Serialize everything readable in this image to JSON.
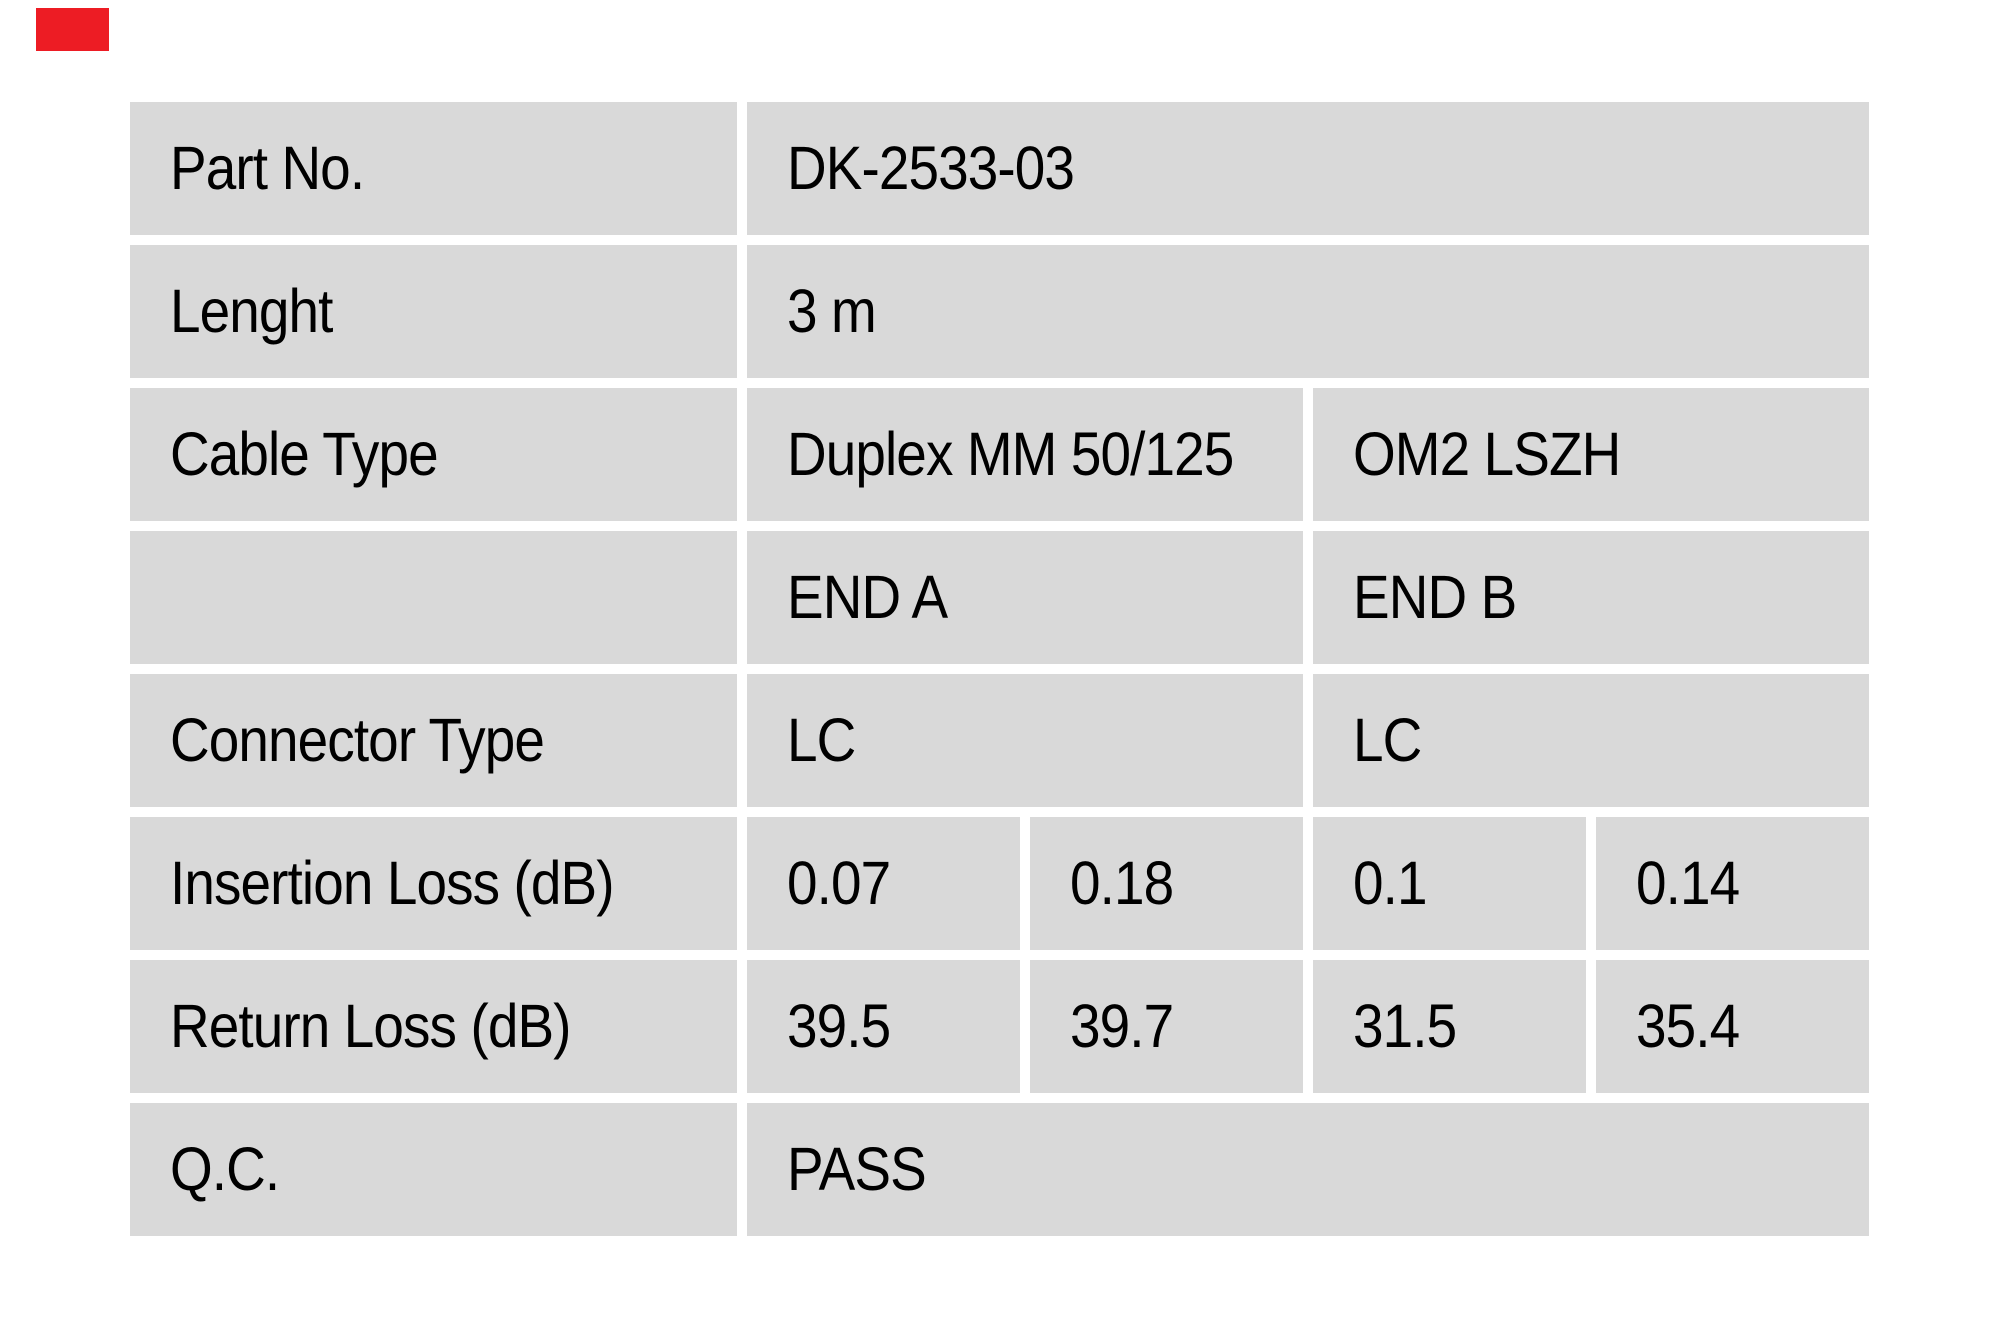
{
  "page": {
    "background": "#ffffff",
    "cell_background": "#d9d9d9",
    "text_color": "#000000"
  },
  "red_marker": {
    "color": "#ed1c24"
  },
  "table": {
    "rows": [
      {
        "label": "Part No.",
        "values": [
          {
            "text": "DK-2533-03",
            "span": 4
          }
        ]
      },
      {
        "label": "Lenght",
        "values": [
          {
            "text": "3 m",
            "span": 4
          }
        ]
      },
      {
        "label": "Cable Type",
        "values": [
          {
            "text": "Duplex MM 50/125",
            "span": 2
          },
          {
            "text": "OM2 LSZH",
            "span": 2
          }
        ]
      },
      {
        "label": "",
        "values": [
          {
            "text": "END A",
            "span": 2
          },
          {
            "text": "END B",
            "span": 2
          }
        ]
      },
      {
        "label": "Connector Type",
        "values": [
          {
            "text": "LC",
            "span": 2
          },
          {
            "text": "LC",
            "span": 2
          }
        ]
      },
      {
        "label": "Insertion Loss (dB)",
        "values": [
          {
            "text": "0.07",
            "span": 1
          },
          {
            "text": "0.18",
            "span": 1
          },
          {
            "text": "0.1",
            "span": 1
          },
          {
            "text": "0.14",
            "span": 1
          }
        ]
      },
      {
        "label": "Return Loss (dB)",
        "values": [
          {
            "text": "39.5",
            "span": 1
          },
          {
            "text": "39.7",
            "span": 1
          },
          {
            "text": "31.5",
            "span": 1
          },
          {
            "text": "35.4",
            "span": 1
          }
        ]
      },
      {
        "label": "Q.C.",
        "values": [
          {
            "text": "PASS",
            "span": 4
          }
        ]
      }
    ]
  }
}
